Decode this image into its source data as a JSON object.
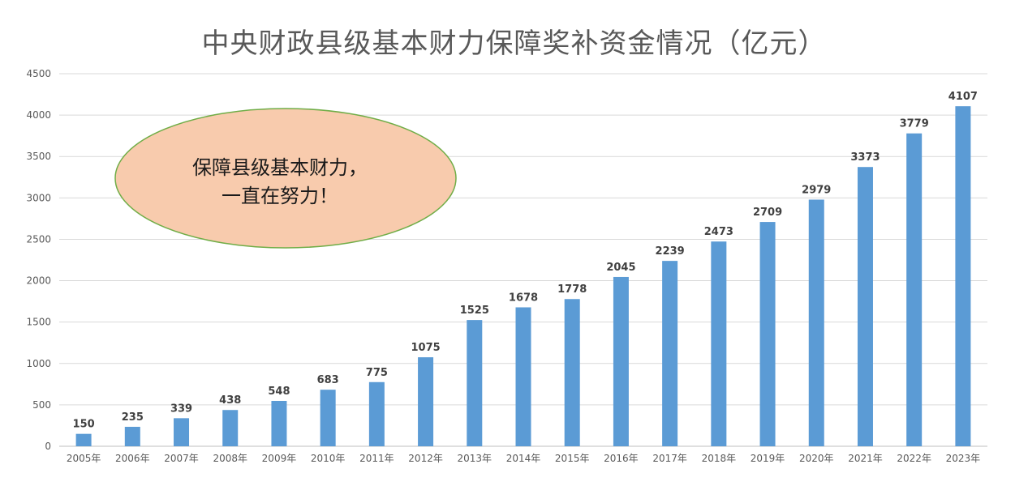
{
  "chart_data": {
    "type": "bar",
    "title": "中央财政县级基本财力保障奖补资金情况（亿元）",
    "xlabel": "",
    "ylabel": "",
    "ylim": [
      0,
      4500
    ],
    "yticks": [
      "0",
      "500",
      "1000",
      "1500",
      "2000",
      "2500",
      "3000",
      "3500",
      "4000",
      "4500"
    ],
    "grid": true,
    "categories": [
      "2005年",
      "2006年",
      "2007年",
      "2008年",
      "2009年",
      "2010年",
      "2011年",
      "2012年",
      "2013年",
      "2014年",
      "2015年",
      "2016年",
      "2017年",
      "2018年",
      "2019年",
      "2020年",
      "2021年",
      "2022年",
      "2023年"
    ],
    "values": [
      150,
      235,
      339,
      438,
      548,
      683,
      775,
      1075,
      1525,
      1678,
      1778,
      2045,
      2239,
      2473,
      2709,
      2979,
      3373,
      3779,
      4107
    ],
    "bar_color": "#5b9bd5",
    "annotation": {
      "lines": [
        "保障县级基本财力，",
        "一直在努力！"
      ],
      "fill": "#f8cbad",
      "stroke": "#70ad47"
    }
  }
}
